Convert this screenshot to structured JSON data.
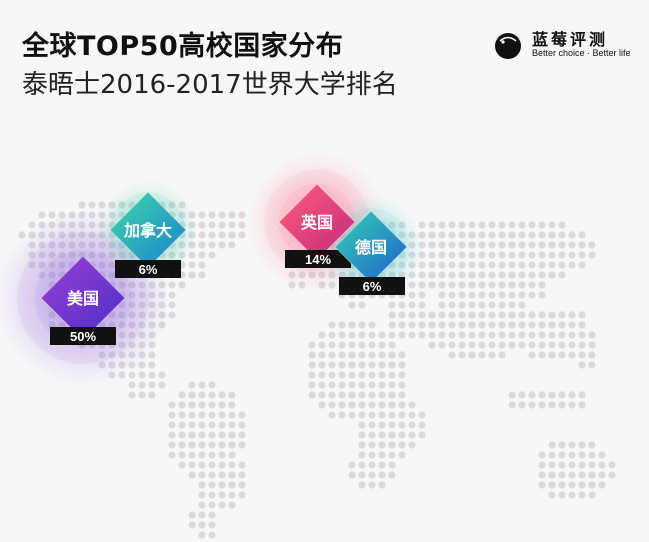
{
  "header": {
    "title": "全球TOP50高校国家分布",
    "subtitle": "泰晤士2016-2017世界大学排名"
  },
  "brand": {
    "name": "蓝莓评测",
    "slogan": "Better choice · Better life"
  },
  "chart_data": {
    "type": "map-bubble",
    "unit": "%",
    "points": [
      {
        "country": "美国",
        "label": "50%",
        "value": 50,
        "colors": [
          "#9a3fd6",
          "#4c2fc7"
        ],
        "glow": "#8a5ad8"
      },
      {
        "country": "加拿大",
        "label": "6%",
        "value": 6,
        "colors": [
          "#3cd9a6",
          "#1b7fd0"
        ],
        "glow": "#38c9a0"
      },
      {
        "country": "英国",
        "label": "14%",
        "value": 14,
        "colors": [
          "#ff5f7a",
          "#c2287f"
        ],
        "glow": "#ff6a86"
      },
      {
        "country": "德国",
        "label": "6%",
        "value": 6,
        "colors": [
          "#33d3b0",
          "#1f5ecf"
        ],
        "glow": "#38c9c0"
      }
    ]
  }
}
